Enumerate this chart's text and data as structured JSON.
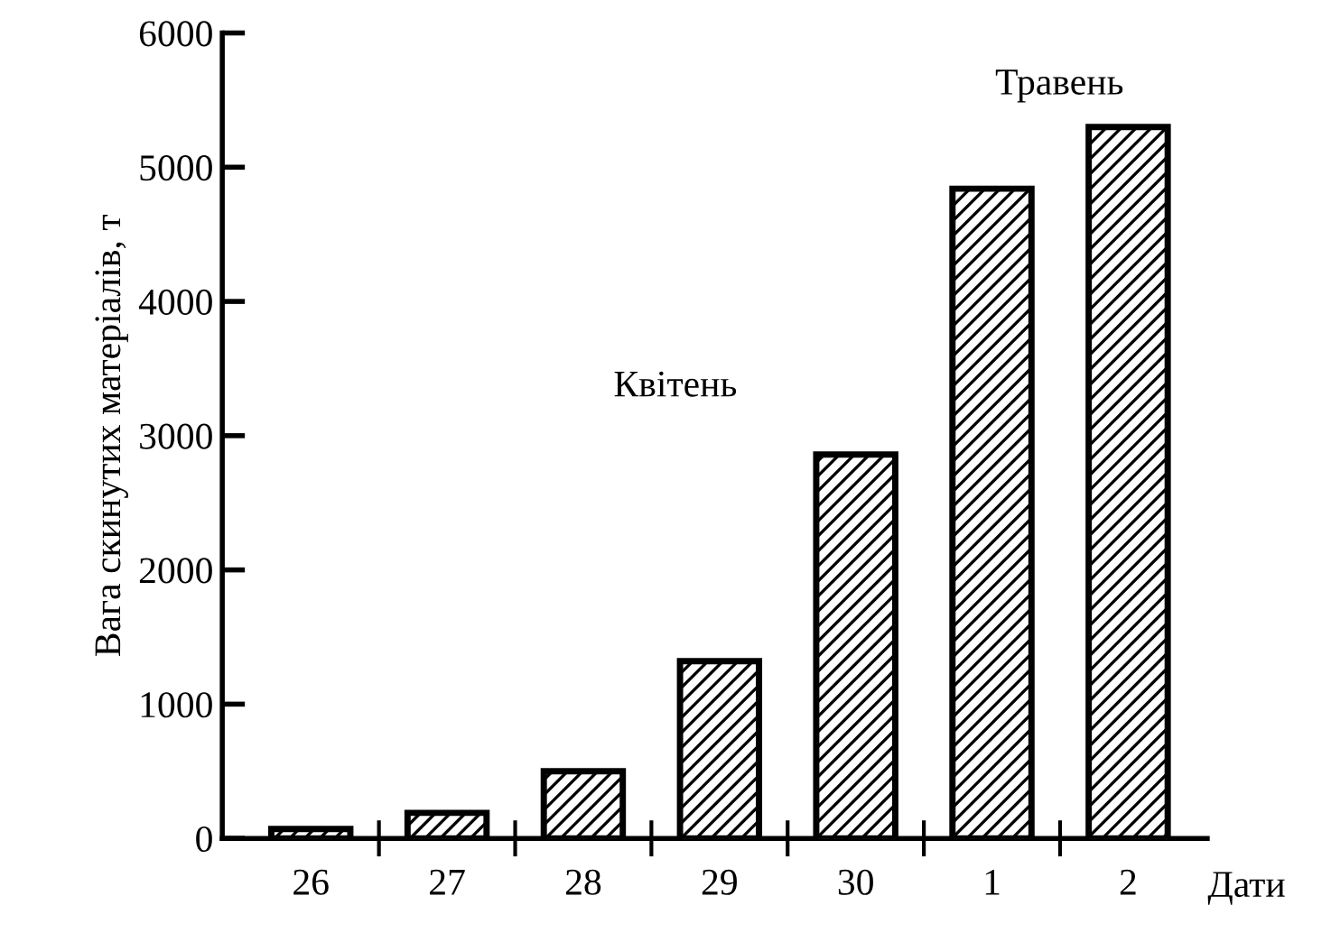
{
  "chart_data": {
    "type": "bar",
    "xlabel": "Дати",
    "ylabel": "Вага скинутих матеріалів, т",
    "categories": [
      "26",
      "27",
      "28",
      "29",
      "30",
      "1",
      "2"
    ],
    "values": [
      70,
      190,
      500,
      1320,
      2860,
      4840,
      5300
    ],
    "color": "#000000",
    "ylim": [
      0,
      6000
    ],
    "yticks": [
      0,
      1000,
      2000,
      3000,
      4000,
      5000,
      6000
    ],
    "grid": false,
    "annotations": [
      "Квітень",
      "Травень"
    ]
  }
}
